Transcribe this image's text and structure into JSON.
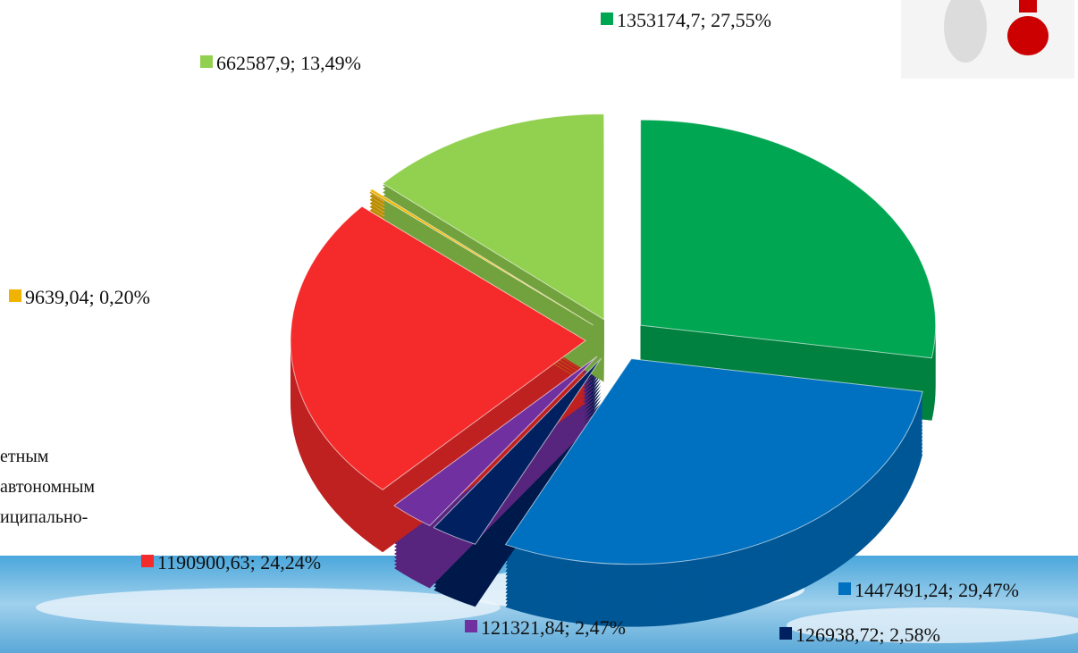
{
  "chart_data": {
    "type": "pie",
    "values": [
      1353174.7,
      1447491.24,
      126938.72,
      121321.84,
      1190900.63,
      9639.04,
      662587.9
    ],
    "value_labels": [
      "1353174,7; 27,55%",
      "1447491,24; 29,47%",
      "126938,72; 2,58%",
      "121321,84; 2,47%",
      "1190900,63; 24,24%",
      "9639,04; 0,20%",
      "662587,9; 13,49%"
    ],
    "colors": [
      "#00a651",
      "#0070c0",
      "#002060",
      "#7030a0",
      "#f52a2a",
      "#f0b400",
      "#92d050"
    ],
    "side_text": [
      "етным",
      "автономным",
      "иципально-"
    ]
  }
}
